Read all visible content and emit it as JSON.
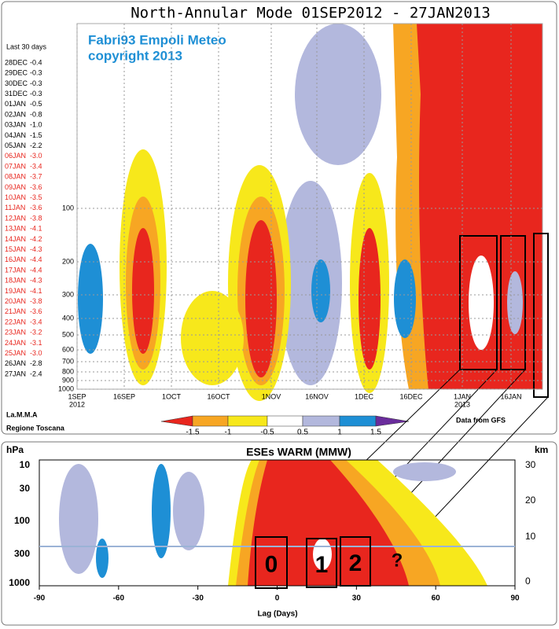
{
  "top_panel": {
    "title": "North-Annular Mode 01SEP2012 - 27JAN2013",
    "watermark": [
      "Fabri93 Empoli Meteo",
      "copyright 2013"
    ],
    "last_days_title": "Last 30 days",
    "last_days": [
      {
        "date": "28DEC",
        "value": "-0.4",
        "color": "#000000"
      },
      {
        "date": "29DEC",
        "value": "-0.3",
        "color": "#000000"
      },
      {
        "date": "30DEC",
        "value": "-0.3",
        "color": "#000000"
      },
      {
        "date": "31DEC",
        "value": "-0.3",
        "color": "#000000"
      },
      {
        "date": "01JAN",
        "value": "-0.5",
        "color": "#000000"
      },
      {
        "date": "02JAN",
        "value": "-0.8",
        "color": "#000000"
      },
      {
        "date": "03JAN",
        "value": "-1.0",
        "color": "#000000"
      },
      {
        "date": "04JAN",
        "value": "-1.5",
        "color": "#000000"
      },
      {
        "date": "05JAN",
        "value": "-2.2",
        "color": "#000000"
      },
      {
        "date": "06JAN",
        "value": "-3.0",
        "color": "#e8261e"
      },
      {
        "date": "07JAN",
        "value": "-3.4",
        "color": "#e8261e"
      },
      {
        "date": "08JAN",
        "value": "-3.7",
        "color": "#e8261e"
      },
      {
        "date": "09JAN",
        "value": "-3.6",
        "color": "#e8261e"
      },
      {
        "date": "10JAN",
        "value": "-3.5",
        "color": "#e8261e"
      },
      {
        "date": "11JAN",
        "value": "-3.6",
        "color": "#e8261e"
      },
      {
        "date": "12JAN",
        "value": "-3.8",
        "color": "#e8261e"
      },
      {
        "date": "13JAN",
        "value": "-4.1",
        "color": "#e8261e"
      },
      {
        "date": "14JAN",
        "value": "-4.2",
        "color": "#e8261e"
      },
      {
        "date": "15JAN",
        "value": "-4.3",
        "color": "#e8261e"
      },
      {
        "date": "16JAN",
        "value": "-4.4",
        "color": "#e8261e"
      },
      {
        "date": "17JAN",
        "value": "-4.4",
        "color": "#e8261e"
      },
      {
        "date": "18JAN",
        "value": "-4.3",
        "color": "#e8261e"
      },
      {
        "date": "19JAN",
        "value": "-4.1",
        "color": "#e8261e"
      },
      {
        "date": "20JAN",
        "value": "-3.8",
        "color": "#e8261e"
      },
      {
        "date": "21JAN",
        "value": "-3.6",
        "color": "#e8261e"
      },
      {
        "date": "22JAN",
        "value": "-3.4",
        "color": "#e8261e"
      },
      {
        "date": "23JAN",
        "value": "-3.2",
        "color": "#e8261e"
      },
      {
        "date": "24JAN",
        "value": "-3.1",
        "color": "#e8261e"
      },
      {
        "date": "25JAN",
        "value": "-3.0",
        "color": "#e8261e"
      },
      {
        "date": "26JAN",
        "value": "-2.8",
        "color": "#000000"
      },
      {
        "date": "27JAN",
        "value": "-2.4",
        "color": "#000000"
      }
    ],
    "y_ticks": [
      "100",
      "200",
      "300",
      "400",
      "500",
      "600",
      "700",
      "800",
      "900",
      "1000"
    ],
    "x_ticks": [
      {
        "label": "1SEP",
        "sub": "2012"
      },
      {
        "label": "16SEP"
      },
      {
        "label": "1OCT"
      },
      {
        "label": "16OCT"
      },
      {
        "label": "1NOV"
      },
      {
        "label": "16NOV"
      },
      {
        "label": "1DEC"
      },
      {
        "label": "16DEC"
      },
      {
        "label": "1JAN",
        "sub": "2013"
      },
      {
        "label": "16JAN"
      }
    ],
    "colorbar_ticks": [
      "-1.5",
      "-1",
      "-0.5",
      "0.5",
      "1",
      "1.5"
    ],
    "credits": [
      "La.M.M.A",
      "Regione Toscana"
    ],
    "source": "Data from GFS"
  },
  "bottom_panel": {
    "title": "ESEs WARM  (MMW)",
    "left_axis_label": "hPa",
    "right_axis_label": "km",
    "left_ticks": [
      "10",
      "30",
      "100",
      "300",
      "1000"
    ],
    "right_ticks": [
      "30",
      "20",
      "10",
      "0"
    ],
    "x_ticks": [
      "-90",
      "-60",
      "-30",
      "0",
      "30",
      "60",
      "90"
    ],
    "x_label": "Lag (Days)",
    "boxes": [
      "0",
      "1",
      "2"
    ],
    "question": "?"
  }
}
